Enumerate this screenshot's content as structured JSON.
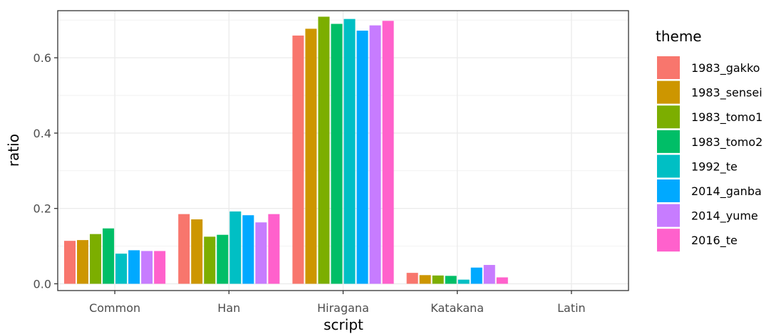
{
  "chart_data": {
    "type": "bar",
    "xlabel": "script",
    "ylabel": "ratio",
    "categories": [
      "Common",
      "Han",
      "Hiragana",
      "Katakana",
      "Latin"
    ],
    "ylim": [
      -0.018,
      0.725
    ],
    "yticks": [
      0.0,
      0.2,
      0.4,
      0.6
    ],
    "ytick_labels": [
      "0.0",
      "0.2",
      "0.4",
      "0.6"
    ],
    "grid": true,
    "legend": {
      "title": "theme",
      "position": "right"
    },
    "series": [
      {
        "name": "1983_gakko",
        "color": "#F8766D",
        "values": [
          0.114,
          0.185,
          0.659,
          0.029,
          0.0
        ]
      },
      {
        "name": "1983_sensei",
        "color": "#CD9600",
        "values": [
          0.116,
          0.171,
          0.677,
          0.023,
          0.0
        ]
      },
      {
        "name": "1983_tomo1",
        "color": "#7CAE00",
        "values": [
          0.132,
          0.125,
          0.709,
          0.022,
          0.0
        ]
      },
      {
        "name": "1983_tomo2",
        "color": "#00BE67",
        "values": [
          0.147,
          0.13,
          0.69,
          0.021,
          0.0
        ]
      },
      {
        "name": "1992_te",
        "color": "#00BFC4",
        "values": [
          0.08,
          0.192,
          0.703,
          0.011,
          0.0
        ]
      },
      {
        "name": "2014_ganba",
        "color": "#00A9FF",
        "values": [
          0.089,
          0.182,
          0.672,
          0.043,
          0.0
        ]
      },
      {
        "name": "2014_yume",
        "color": "#C77CFF",
        "values": [
          0.087,
          0.163,
          0.686,
          0.05,
          0.0
        ]
      },
      {
        "name": "2016_te",
        "color": "#FF61CC",
        "values": [
          0.087,
          0.185,
          0.698,
          0.017,
          0.0
        ]
      }
    ]
  }
}
